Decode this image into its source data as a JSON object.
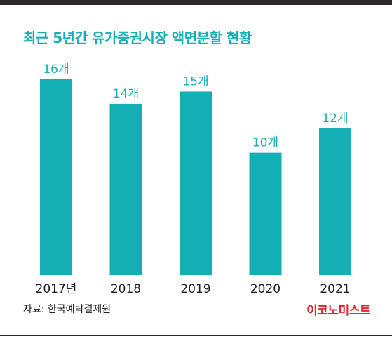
{
  "header": {
    "title": "최근 5년간 유가증권시장 액면분할 현황"
  },
  "footer": {
    "source": "자료: 한국예탁결제원",
    "brand": "이코노미스트"
  },
  "colors": {
    "bar": "#14afb4",
    "title": "#14afb4",
    "brand": "#e3262d",
    "text": "#222222",
    "frame": "#2d2627"
  },
  "chart_data": {
    "type": "bar",
    "title": "최근 5년간 유가증권시장 액면분할 현황",
    "categories": [
      "2017년",
      "2018",
      "2019",
      "2020",
      "2021"
    ],
    "values": [
      16,
      14,
      15,
      10,
      12
    ],
    "value_labels": [
      "16개",
      "14개",
      "15개",
      "10개",
      "12개"
    ],
    "xlabel": "",
    "ylabel": "",
    "ylim": [
      0,
      16
    ],
    "grid": false,
    "legend": "none"
  }
}
